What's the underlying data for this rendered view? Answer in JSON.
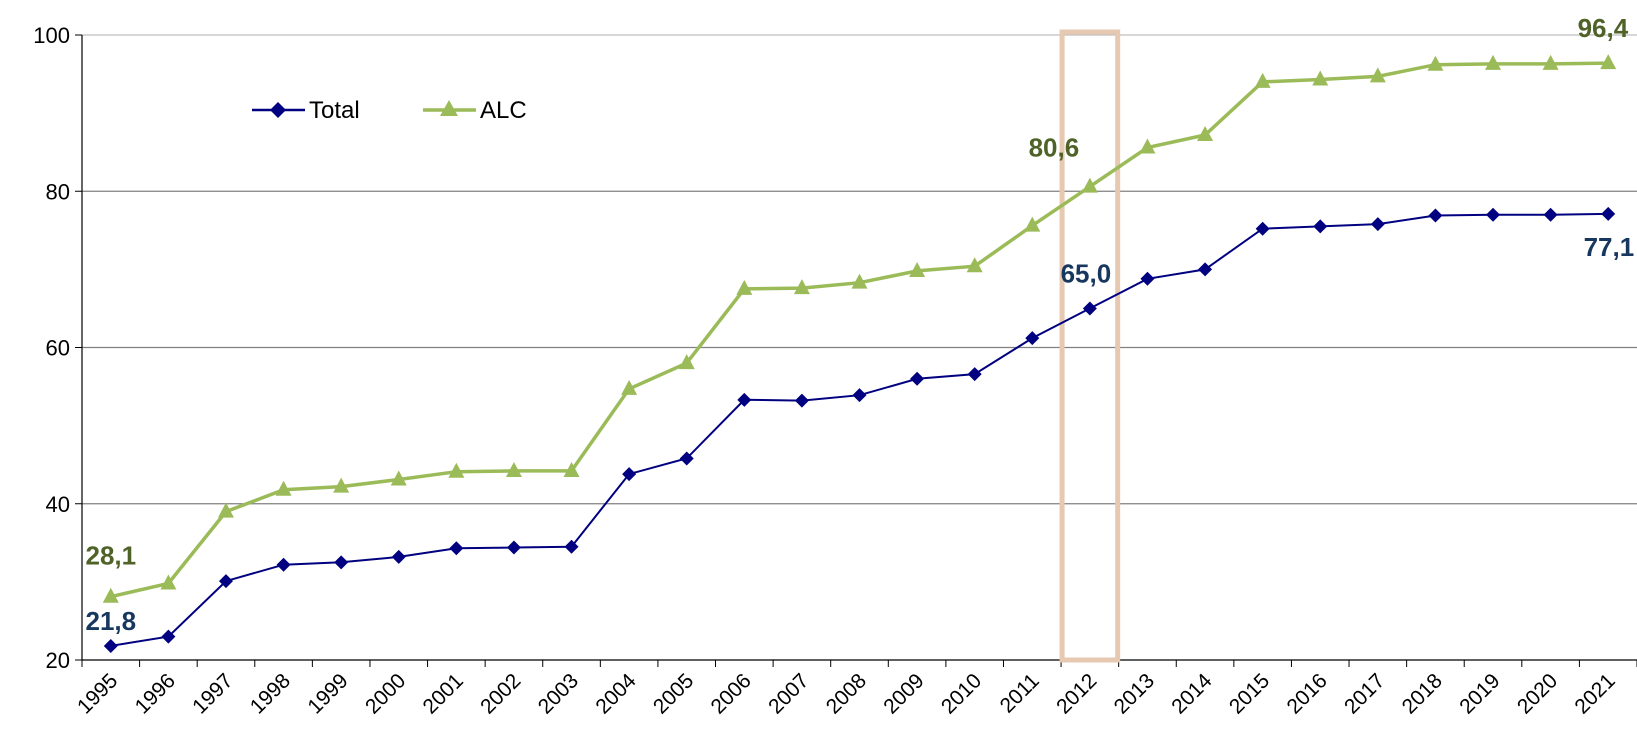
{
  "chart_data": {
    "type": "line",
    "x": [
      "1995",
      "1996",
      "1997",
      "1998",
      "1999",
      "2000",
      "2001",
      "2002",
      "2003",
      "2004",
      "2005",
      "2006",
      "2007",
      "2008",
      "2009",
      "2010",
      "2011",
      "2012",
      "2013",
      "2014",
      "2015",
      "2016",
      "2017",
      "2018",
      "2019",
      "2020",
      "2021"
    ],
    "series": [
      {
        "name": "Total",
        "color": "#000080",
        "marker": "diamond",
        "values": [
          21.8,
          23.0,
          30.1,
          32.2,
          32.5,
          33.2,
          34.3,
          34.4,
          34.5,
          43.8,
          45.8,
          53.3,
          53.2,
          53.9,
          56.0,
          56.6,
          61.2,
          65.0,
          68.8,
          70.0,
          75.2,
          75.5,
          75.8,
          76.9,
          77.0,
          77.0,
          77.1
        ]
      },
      {
        "name": "ALC",
        "color": "#9BBB59",
        "marker": "triangle",
        "values": [
          28.1,
          29.8,
          39.0,
          41.8,
          42.2,
          43.1,
          44.1,
          44.2,
          44.2,
          54.7,
          58.0,
          67.5,
          67.6,
          68.3,
          69.8,
          70.4,
          75.6,
          80.6,
          85.6,
          87.2,
          94.0,
          94.3,
          94.7,
          96.2,
          96.3,
          96.3,
          96.4
        ]
      }
    ],
    "ylim": [
      20,
      100
    ],
    "yticks": [
      "20",
      "40",
      "60",
      "80",
      "100"
    ],
    "grid": true,
    "legend_position": "top-left",
    "highlight_category": "2012",
    "annotations": [
      {
        "series": 0,
        "index": 0,
        "text": "21,8",
        "color": "#17375E"
      },
      {
        "series": 0,
        "index": 17,
        "text": "65,0",
        "color": "#17375E"
      },
      {
        "series": 0,
        "index": 26,
        "text": "77,1",
        "color": "#17375E"
      },
      {
        "series": 1,
        "index": 0,
        "text": "28,1",
        "color": "#4F6228"
      },
      {
        "series": 1,
        "index": 17,
        "text": "80,6",
        "color": "#4F6228"
      },
      {
        "series": 1,
        "index": 26,
        "text": "96,4",
        "color": "#4F6228"
      }
    ]
  }
}
